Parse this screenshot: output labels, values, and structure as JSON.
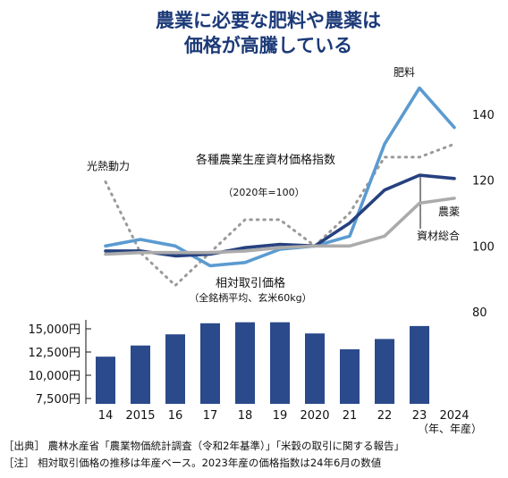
{
  "title_lines": [
    "農業に必要な肥料や農薬は",
    "価格が高騰している"
  ],
  "chart_data": [
    {
      "type": "line",
      "title": "各種農業生産資材価格指数",
      "subtitle": "（2020年=100）",
      "x": [
        "14",
        "2015",
        "16",
        "17",
        "18",
        "19",
        "2020",
        "21",
        "22",
        "23",
        "2024"
      ],
      "ylim": [
        75,
        150
      ],
      "yticks": [
        "140",
        "120",
        "100",
        "80"
      ],
      "series": [
        {
          "name": "光熱動力",
          "color": "#9a9a9a",
          "dash": true,
          "values": [
            119.5,
            98,
            88,
            98,
            108,
            108,
            100,
            110,
            127,
            127,
            131
          ]
        },
        {
          "name": "肥料",
          "color": "#5b9bd0",
          "values": [
            100,
            102,
            100,
            94,
            95,
            99,
            100,
            103,
            131,
            148,
            136
          ]
        },
        {
          "name": "資材総合",
          "color": "#26417f",
          "values": [
            98.5,
            98.5,
            97,
            97.5,
            99.5,
            100.5,
            100,
            107,
            117,
            121.5,
            120.5
          ]
        },
        {
          "name": "農薬",
          "color": "#ababab",
          "values": [
            97.5,
            98,
            98,
            98,
            98.5,
            99.5,
            100,
            100,
            103,
            113,
            114.5
          ]
        }
      ]
    },
    {
      "type": "bar",
      "title": "相対取引価格",
      "subtitle": "（全銘柄平均、玄米60kg）",
      "categories": [
        "14",
        "2015",
        "16",
        "17",
        "18",
        "19",
        "2020",
        "21",
        "22",
        "23",
        "2024"
      ],
      "values": [
        12000,
        13200,
        14400,
        15600,
        15700,
        15700,
        14500,
        12800,
        13900,
        15300,
        null
      ],
      "color": "#2b4a8b",
      "ylim": [
        7500,
        16500
      ],
      "yticks": [
        "15,000円",
        "12,500円",
        "10,000円",
        "7,500円"
      ],
      "xlabel": "（年、年産）"
    }
  ],
  "notes": [
    "［出典］ 農林水産省「農業物価統計調査（令和2年基準）」「米穀の取引に関する報告」",
    "［注］ 相対取引価格の推移は年産ベース。2023年産の価格指数は24年6月の数値"
  ]
}
